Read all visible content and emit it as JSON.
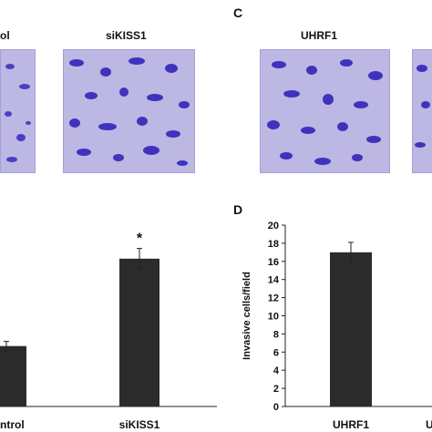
{
  "top_panels": {
    "left_label_partial": "ol",
    "middle_label": "siKISS1",
    "right_panel_letter": "C",
    "right_label": "UHRF1"
  },
  "chart_data": [
    {
      "type": "bar",
      "title": "",
      "xlabel": "",
      "ylabel": "",
      "categories": [
        "ntrol",
        "siKISS1"
      ],
      "values": [
        6.5,
        15.9
      ],
      "errors": [
        0.5,
        1.1
      ],
      "ylim": [
        0,
        20
      ],
      "significance": [
        "",
        "*"
      ],
      "bar_color": "#2b2b2b"
    },
    {
      "type": "bar",
      "panel_letter": "D",
      "title": "",
      "xlabel": "",
      "ylabel": "Invasive cells/field",
      "categories": [
        "UHRF1",
        "U"
      ],
      "values": [
        17.0,
        null
      ],
      "errors": [
        1.1,
        null
      ],
      "ylim": [
        0,
        20
      ],
      "yticks": [
        0,
        2,
        4,
        6,
        8,
        10,
        12,
        14,
        16,
        18,
        20
      ],
      "bar_color": "#2b2b2b"
    }
  ]
}
